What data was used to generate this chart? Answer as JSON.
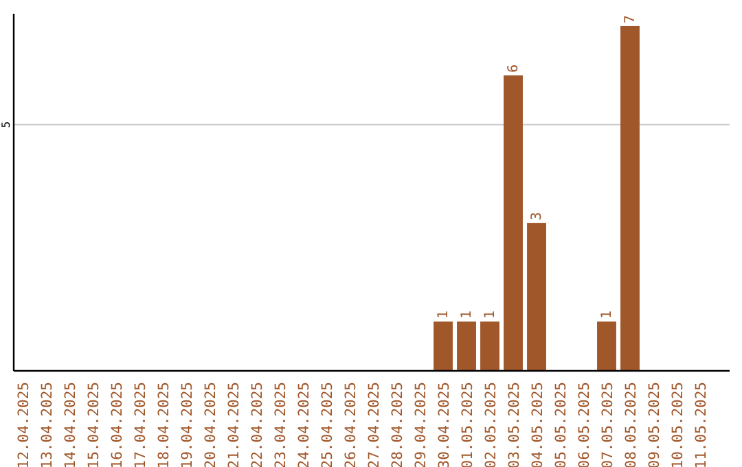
{
  "chart_data": {
    "type": "bar",
    "categories": [
      "12.04.2025",
      "13.04.2025",
      "14.04.2025",
      "15.04.2025",
      "16.04.2025",
      "17.04.2025",
      "18.04.2025",
      "19.04.2025",
      "20.04.2025",
      "21.04.2025",
      "22.04.2025",
      "23.04.2025",
      "24.04.2025",
      "25.04.2025",
      "26.04.2025",
      "27.04.2025",
      "28.04.2025",
      "29.04.2025",
      "30.04.2025",
      "01.05.2025",
      "02.05.2025",
      "03.05.2025",
      "04.05.2025",
      "05.05.2025",
      "06.05.2025",
      "07.05.2025",
      "08.05.2025",
      "09.05.2025",
      "10.05.2025",
      "11.05.2025"
    ],
    "values": [
      null,
      null,
      null,
      null,
      null,
      null,
      null,
      null,
      null,
      null,
      null,
      null,
      null,
      null,
      null,
      null,
      null,
      null,
      1,
      1,
      1,
      6,
      3,
      null,
      null,
      1,
      7,
      null,
      null,
      null
    ],
    "data_labels": true,
    "color": "#a0572a",
    "ylim": [
      0,
      7.25
    ],
    "yticks": [
      5
    ],
    "grid": "y"
  }
}
